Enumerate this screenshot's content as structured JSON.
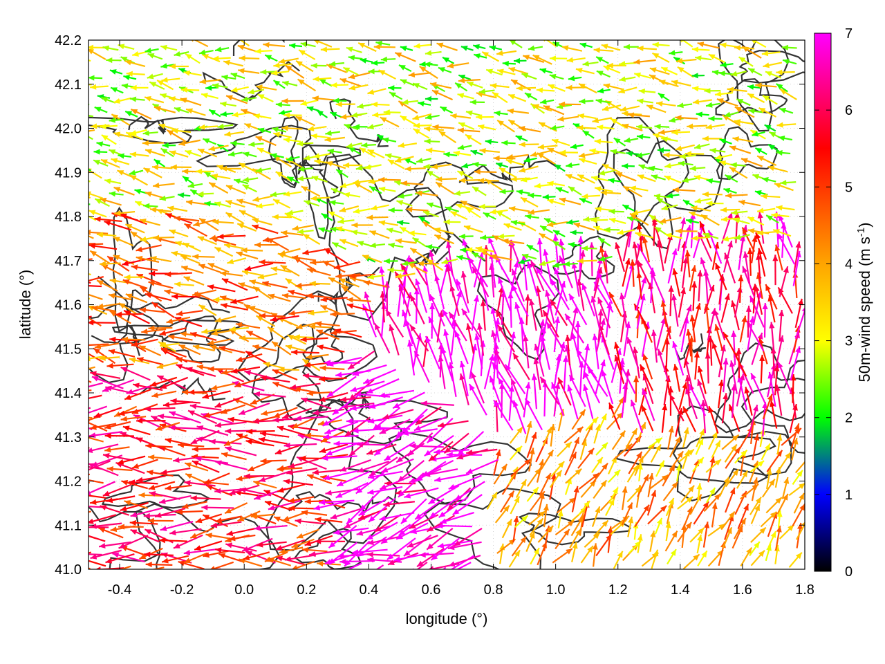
{
  "chart_data": {
    "type": "vector-field",
    "xlabel": "longitude (°)",
    "ylabel": "latitude (°)",
    "xlim": [
      -0.5,
      1.8
    ],
    "ylim": [
      41.0,
      42.2
    ],
    "x_ticks": [
      "-0.4",
      "-0.2",
      "0.0",
      "0.2",
      "0.4",
      "0.6",
      "0.8",
      "1.0",
      "1.2",
      "1.4",
      "1.6",
      "1.8"
    ],
    "x_tick_values": [
      -0.4,
      -0.2,
      0.0,
      0.2,
      0.4,
      0.6,
      0.8,
      1.0,
      1.2,
      1.4,
      1.6,
      1.8
    ],
    "y_ticks": [
      "41.0",
      "41.1",
      "41.2",
      "41.3",
      "41.4",
      "41.5",
      "41.6",
      "41.7",
      "41.8",
      "41.9",
      "42.0",
      "42.1",
      "42.2"
    ],
    "y_tick_values": [
      41.0,
      41.1,
      41.2,
      41.3,
      41.4,
      41.5,
      41.6,
      41.7,
      41.8,
      41.9,
      42.0,
      42.1,
      42.2
    ],
    "grid": true,
    "colorbar": {
      "label_prefix": "50m-wind speed (m s",
      "label_sup": "-1",
      "label_suffix": ")",
      "range": [
        0,
        7
      ],
      "ticks": [
        "0",
        "1",
        "2",
        "3",
        "4",
        "5",
        "6",
        "7"
      ],
      "tick_values": [
        0,
        1,
        2,
        3,
        4,
        5,
        6,
        7
      ],
      "colors": [
        "#000000",
        "#0000ff",
        "#00ff00",
        "#ffff00",
        "#ffa500",
        "#ff0000",
        "#ff00ff"
      ],
      "stops": [
        0,
        1,
        2,
        3,
        4,
        5.5,
        7
      ]
    },
    "regimes": [
      {
        "region": "southwest",
        "lon": [
          -0.5,
          0.6
        ],
        "lat": [
          41.0,
          41.45
        ],
        "direction_deg": 180,
        "speed_ms": 5.5
      },
      {
        "region": "south-central",
        "lon": [
          0.2,
          0.75
        ],
        "lat": [
          41.0,
          41.45
        ],
        "direction_deg": 200,
        "speed_ms": 7
      },
      {
        "region": "central",
        "lon": [
          0.5,
          1.2
        ],
        "lat": [
          41.35,
          41.65
        ],
        "direction_deg": 100,
        "speed_ms": 7
      },
      {
        "region": "east",
        "lon": [
          1.2,
          1.8
        ],
        "lat": [
          41.3,
          41.75
        ],
        "direction_deg": 95,
        "speed_ms": 6
      },
      {
        "region": "southeast",
        "lon": [
          0.85,
          1.8
        ],
        "lat": [
          41.0,
          41.3
        ],
        "direction_deg": 60,
        "speed_ms": 4
      },
      {
        "region": "west",
        "lon": [
          -0.5,
          0.3
        ],
        "lat": [
          41.45,
          41.8
        ],
        "direction_deg": 170,
        "speed_ms": 4.5
      },
      {
        "region": "north",
        "lon": [
          -0.5,
          1.8
        ],
        "lat": [
          41.75,
          42.2
        ],
        "direction_deg": 170,
        "speed_ms": 3
      }
    ]
  }
}
